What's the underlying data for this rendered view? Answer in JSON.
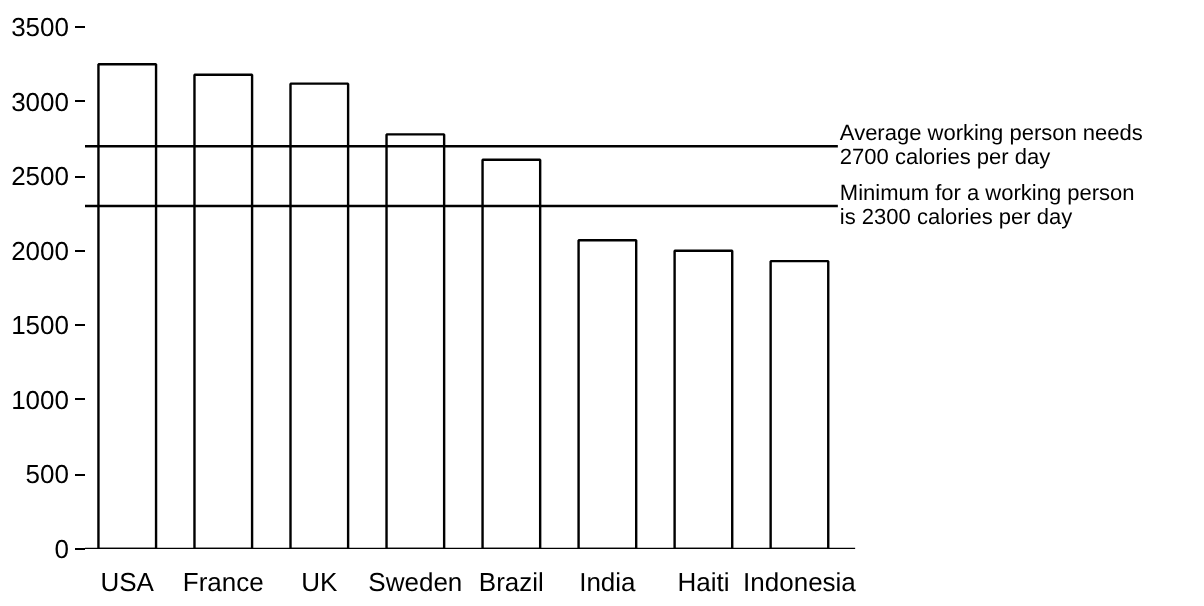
{
  "chart_data": {
    "type": "bar",
    "categories": [
      "USA",
      "France",
      "UK",
      "Sweden",
      "Brazil",
      "India",
      "Haiti",
      "Indonesia"
    ],
    "values": [
      3250,
      3180,
      3120,
      2780,
      2610,
      2070,
      2000,
      1930
    ],
    "color": "#ffffff",
    "ylim": [
      0,
      3500
    ],
    "yticks": [
      0,
      500,
      1000,
      1500,
      2000,
      2500,
      3000,
      3500
    ],
    "grid": false,
    "ref_lines": [
      {
        "axis": "y",
        "value": 2700,
        "label": "Average working person needs 2700 calories per day",
        "color": "#000000"
      },
      {
        "axis": "y",
        "value": 2300,
        "label": "Minimum for a working person is 2300  calories per day",
        "color": "#000000"
      }
    ]
  }
}
